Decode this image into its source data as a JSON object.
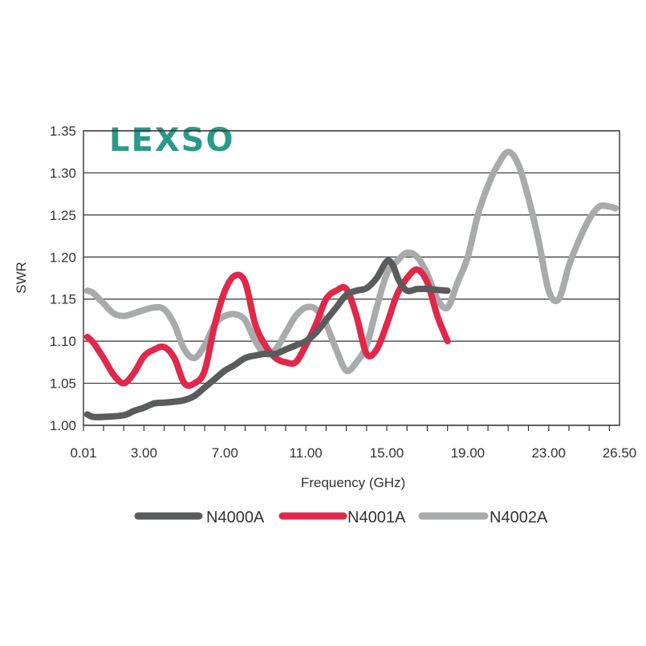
{
  "logo": {
    "text": "LEXSO",
    "color": "#2a9a8a"
  },
  "chart_data": {
    "type": "line",
    "xlabel": "Frequency (GHz)",
    "ylabel": "SWR",
    "xlim": [
      0.01,
      26.5
    ],
    "ylim": [
      1.0,
      1.35
    ],
    "xticks": [
      "0.01",
      "3.00",
      "7.00",
      "11.00",
      "15.00",
      "19.00",
      "23.00",
      "26.50"
    ],
    "yticks": [
      "1.35",
      "1.30",
      "1.25",
      "1.20",
      "1.15",
      "1.10",
      "1.05",
      "1.00"
    ],
    "grid": "horizontal",
    "legend_position": "bottom",
    "series": [
      {
        "name": "N4000A",
        "color": "#5a5b5d",
        "x": [
          0.2,
          0.5,
          1.0,
          2.0,
          2.5,
          3.0,
          3.5,
          4.0,
          4.5,
          5.0,
          5.5,
          6.0,
          6.5,
          7.0,
          7.5,
          8.0,
          8.5,
          9.0,
          9.5,
          10.0,
          10.5,
          11.0,
          11.5,
          12.0,
          12.5,
          13.0,
          13.5,
          14.0,
          14.5,
          15.0,
          15.3,
          15.6,
          16.0,
          16.5,
          17.0,
          17.5,
          18.0
        ],
        "values": [
          1.013,
          1.01,
          1.01,
          1.012,
          1.017,
          1.021,
          1.026,
          1.027,
          1.028,
          1.03,
          1.035,
          1.045,
          1.055,
          1.065,
          1.072,
          1.08,
          1.083,
          1.085,
          1.085,
          1.09,
          1.095,
          1.1,
          1.11,
          1.125,
          1.14,
          1.155,
          1.16,
          1.163,
          1.175,
          1.195,
          1.19,
          1.172,
          1.16,
          1.162,
          1.162,
          1.161,
          1.16
        ]
      },
      {
        "name": "N4001A",
        "color": "#e0284a",
        "x": [
          0.2,
          0.5,
          1.0,
          1.5,
          2.0,
          2.5,
          3.0,
          3.5,
          4.0,
          4.5,
          5.0,
          5.5,
          6.0,
          6.5,
          7.0,
          7.5,
          8.0,
          8.5,
          9.0,
          9.5,
          10.0,
          10.5,
          11.0,
          11.5,
          12.0,
          12.5,
          13.0,
          13.5,
          14.0,
          14.5,
          15.0,
          15.5,
          16.0,
          16.5,
          17.0,
          17.5,
          18.0
        ],
        "values": [
          1.105,
          1.098,
          1.08,
          1.06,
          1.05,
          1.062,
          1.082,
          1.09,
          1.093,
          1.08,
          1.05,
          1.05,
          1.065,
          1.12,
          1.16,
          1.178,
          1.17,
          1.12,
          1.095,
          1.08,
          1.075,
          1.075,
          1.095,
          1.12,
          1.15,
          1.16,
          1.162,
          1.13,
          1.085,
          1.09,
          1.12,
          1.155,
          1.175,
          1.185,
          1.17,
          1.13,
          1.1
        ]
      },
      {
        "name": "N4002A",
        "color": "#a8aaac",
        "x": [
          0.2,
          0.5,
          1.0,
          1.5,
          2.0,
          2.5,
          3.0,
          3.5,
          4.0,
          4.5,
          5.0,
          5.5,
          6.0,
          6.5,
          7.0,
          7.5,
          8.0,
          8.5,
          9.0,
          9.5,
          10.0,
          10.5,
          11.0,
          11.5,
          12.0,
          12.5,
          13.0,
          13.5,
          14.0,
          14.5,
          15.0,
          15.5,
          16.0,
          16.5,
          17.0,
          17.5,
          18.0,
          18.5,
          19.0,
          19.5,
          20.0,
          20.5,
          21.0,
          21.5,
          22.0,
          22.5,
          23.0,
          23.5,
          24.0,
          24.5,
          25.0,
          25.5,
          26.0,
          26.3
        ],
        "values": [
          1.16,
          1.157,
          1.145,
          1.133,
          1.13,
          1.133,
          1.137,
          1.14,
          1.138,
          1.12,
          1.09,
          1.08,
          1.095,
          1.12,
          1.13,
          1.132,
          1.125,
          1.1,
          1.085,
          1.09,
          1.11,
          1.13,
          1.14,
          1.138,
          1.12,
          1.09,
          1.065,
          1.075,
          1.095,
          1.14,
          1.18,
          1.195,
          1.205,
          1.2,
          1.18,
          1.15,
          1.14,
          1.17,
          1.2,
          1.25,
          1.285,
          1.31,
          1.325,
          1.31,
          1.27,
          1.22,
          1.16,
          1.15,
          1.19,
          1.22,
          1.245,
          1.26,
          1.26,
          1.258
        ]
      }
    ]
  }
}
